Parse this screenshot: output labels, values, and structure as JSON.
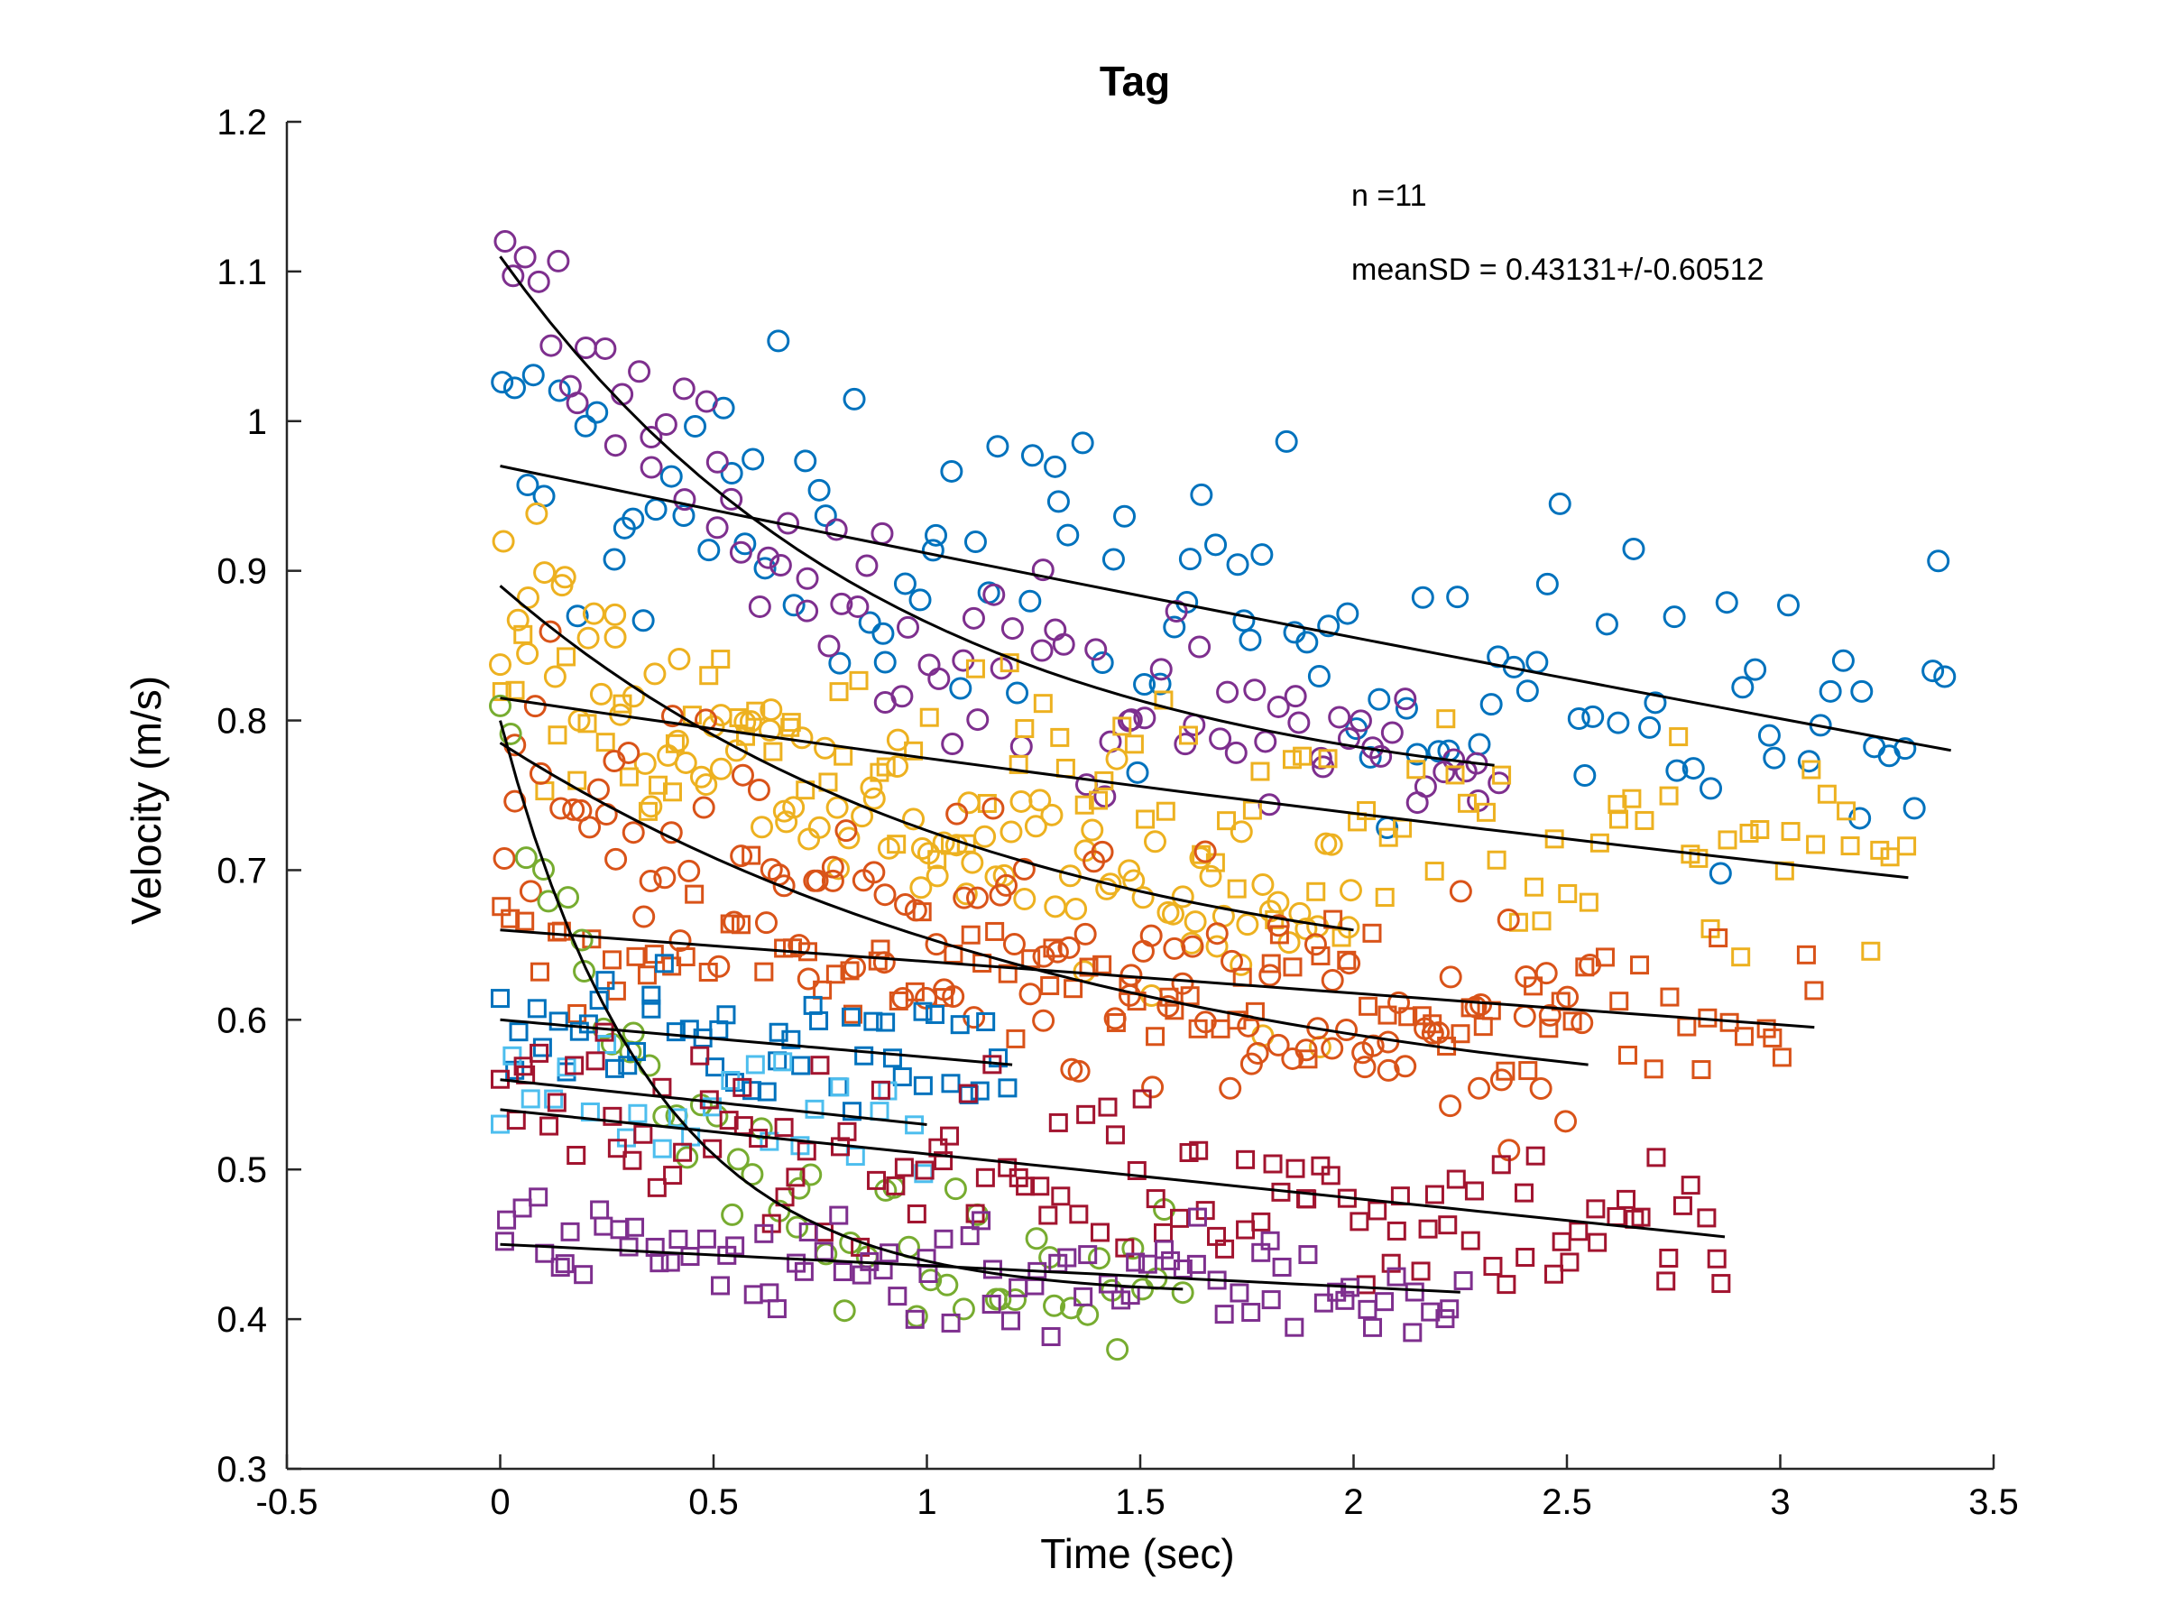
{
  "chart_data": {
    "type": "scatter",
    "title": "Tag",
    "xlabel": "Time (sec)",
    "ylabel": "Velocity (m/s)",
    "xlim": [
      -0.5,
      3.5
    ],
    "ylim": [
      0.3,
      1.2
    ],
    "xticks": [
      -0.5,
      0,
      0.5,
      1,
      1.5,
      2,
      2.5,
      3,
      3.5
    ],
    "yticks": [
      0.3,
      0.4,
      0.5,
      0.6,
      0.7,
      0.8,
      0.9,
      1,
      1.1,
      1.2
    ],
    "xtick_labels": [
      "-0.5",
      "0",
      "0.5",
      "1",
      "1.5",
      "2",
      "2.5",
      "3",
      "3.5"
    ],
    "ytick_labels": [
      "0.3",
      "0.4",
      "0.5",
      "0.6",
      "0.7",
      "0.8",
      "0.9",
      "1",
      "1.1",
      "1.2"
    ],
    "grid": false,
    "legend": "none",
    "annotations": [
      "n =11",
      "meanSD = 0.43131+/-0.60512"
    ],
    "series": [
      {
        "marker": "circle",
        "color": "#0072BD",
        "start": [
          0,
          0.97
        ],
        "end": [
          3.4,
          0.78
        ],
        "y0": 0.97,
        "y1": 0.78,
        "x_end": 3.4,
        "curve": 0.02,
        "spread": 0.075,
        "n": 120
      },
      {
        "marker": "circle",
        "color": "#7E2F8E",
        "start": [
          0,
          1.11
        ],
        "end": [
          2.33,
          0.77
        ],
        "y0": 1.11,
        "y1": 0.77,
        "x_end": 2.33,
        "curve": 0.42,
        "spread": 0.045,
        "n": 90
      },
      {
        "marker": "circle",
        "color": "#EDB120",
        "start": [
          0,
          0.89
        ],
        "end": [
          2.0,
          0.66
        ],
        "y0": 0.89,
        "y1": 0.66,
        "x_end": 2.0,
        "curve": 0.3,
        "spread": 0.045,
        "n": 110
      },
      {
        "marker": "square",
        "color": "#EDB120",
        "start": [
          0,
          0.815
        ],
        "end": [
          3.3,
          0.695
        ],
        "y0": 0.815,
        "y1": 0.695,
        "x_end": 3.3,
        "curve": 0.05,
        "spread": 0.055,
        "n": 110
      },
      {
        "marker": "circle",
        "color": "#D95319",
        "start": [
          0,
          0.785
        ],
        "end": [
          2.55,
          0.57
        ],
        "y0": 0.785,
        "y1": 0.57,
        "x_end": 2.55,
        "curve": 0.3,
        "spread": 0.06,
        "n": 130
      },
      {
        "marker": "square",
        "color": "#D95319",
        "start": [
          0,
          0.66
        ],
        "end": [
          3.08,
          0.595
        ],
        "y0": 0.66,
        "y1": 0.595,
        "x_end": 3.08,
        "curve": 0.0,
        "spread": 0.035,
        "n": 100
      },
      {
        "marker": "circle",
        "color": "#77AC30",
        "start": [
          0,
          0.8
        ],
        "end": [
          1.6,
          0.42
        ],
        "y0": 0.8,
        "y1": 0.42,
        "x_end": 1.6,
        "curve": 0.75,
        "spread": 0.03,
        "n": 55
      },
      {
        "marker": "square",
        "color": "#0072BD",
        "start": [
          0,
          0.6
        ],
        "end": [
          1.2,
          0.57
        ],
        "y0": 0.6,
        "y1": 0.57,
        "x_end": 1.2,
        "curve": 0.0,
        "spread": 0.03,
        "n": 50
      },
      {
        "marker": "square",
        "color": "#4DBEEE",
        "start": [
          0,
          0.56
        ],
        "end": [
          1.0,
          0.53
        ],
        "y0": 0.56,
        "y1": 0.53,
        "x_end": 1.0,
        "curve": 0.0,
        "spread": 0.025,
        "n": 25
      },
      {
        "marker": "square",
        "color": "#A2142F",
        "start": [
          0,
          0.54
        ],
        "end": [
          2.87,
          0.455
        ],
        "y0": 0.54,
        "y1": 0.455,
        "x_end": 2.87,
        "curve": 0.0,
        "spread": 0.04,
        "n": 120
      },
      {
        "marker": "square",
        "color": "#7E2F8E",
        "start": [
          0,
          0.45
        ],
        "end": [
          2.25,
          0.418
        ],
        "y0": 0.45,
        "y1": 0.418,
        "x_end": 2.25,
        "curve": 0.0,
        "spread": 0.03,
        "n": 90
      }
    ]
  }
}
